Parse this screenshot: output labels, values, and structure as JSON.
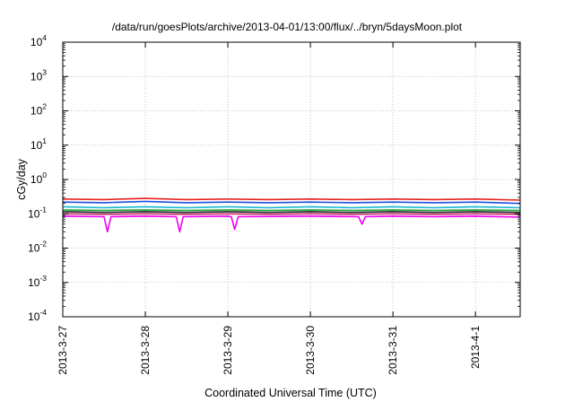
{
  "chart_data": {
    "type": "line",
    "title": "/data/run/goesPlots/archive/2013-04-01/13:00/flux/../bryn/5daysMoon.plot",
    "xlabel": "Coordinated Universal Time (UTC)",
    "ylabel": "cGy/day",
    "y_scale": "log",
    "ylim": [
      0.0001,
      10000
    ],
    "xlim": [
      "2013-03-27 00:00",
      "2013-04-01 13:00"
    ],
    "grid": true,
    "x_ticks": [
      {
        "value": "2013-03-27",
        "label": "2013-3-27"
      },
      {
        "value": "2013-03-28",
        "label": "2013-3-28"
      },
      {
        "value": "2013-03-29",
        "label": "2013-3-29"
      },
      {
        "value": "2013-03-30",
        "label": "2013-3-30"
      },
      {
        "value": "2013-03-31",
        "label": "2013-3-31"
      },
      {
        "value": "2013-04-01",
        "label": "2013-4-1"
      }
    ],
    "y_ticks": [
      {
        "value": 0.0001,
        "base": "10",
        "exp": "-4"
      },
      {
        "value": 0.001,
        "base": "10",
        "exp": "-3"
      },
      {
        "value": 0.01,
        "base": "10",
        "exp": "-2"
      },
      {
        "value": 0.1,
        "base": "10",
        "exp": "-1"
      },
      {
        "value": 1,
        "base": "10",
        "exp": "0"
      },
      {
        "value": 10,
        "base": "10",
        "exp": "1"
      },
      {
        "value": 100,
        "base": "10",
        "exp": "2"
      },
      {
        "value": 1000,
        "base": "10",
        "exp": "3"
      },
      {
        "value": 10000,
        "base": "10",
        "exp": "4"
      }
    ],
    "series": [
      {
        "color": "#e8201c",
        "x": [
          "2013-03-27 00:00",
          "2013-03-27 12:00",
          "2013-03-28 00:00",
          "2013-03-28 12:00",
          "2013-03-29 00:00",
          "2013-03-29 12:00",
          "2013-03-30 00:00",
          "2013-03-30 12:00",
          "2013-03-31 00:00",
          "2013-03-31 12:00",
          "2013-04-01 00:00",
          "2013-04-01 13:00"
        ],
        "values": [
          0.27,
          0.26,
          0.28,
          0.26,
          0.27,
          0.26,
          0.27,
          0.26,
          0.27,
          0.26,
          0.27,
          0.25
        ]
      },
      {
        "color": "#1f4fe0",
        "x": [
          "2013-03-27 00:00",
          "2013-03-27 12:00",
          "2013-03-28 00:00",
          "2013-03-28 12:00",
          "2013-03-29 00:00",
          "2013-03-29 12:00",
          "2013-03-30 00:00",
          "2013-03-30 12:00",
          "2013-03-31 00:00",
          "2013-03-31 12:00",
          "2013-04-01 00:00",
          "2013-04-01 13:00"
        ],
        "values": [
          0.22,
          0.21,
          0.23,
          0.21,
          0.22,
          0.21,
          0.22,
          0.21,
          0.22,
          0.21,
          0.22,
          0.2
        ]
      },
      {
        "color": "#19b5d0",
        "x": [
          "2013-03-27 00:00",
          "2013-03-27 12:00",
          "2013-03-28 00:00",
          "2013-03-28 12:00",
          "2013-03-29 00:00",
          "2013-03-29 12:00",
          "2013-03-30 00:00",
          "2013-03-30 12:00",
          "2013-03-31 00:00",
          "2013-03-31 12:00",
          "2013-04-01 00:00",
          "2013-04-01 13:00"
        ],
        "values": [
          0.16,
          0.15,
          0.16,
          0.15,
          0.16,
          0.15,
          0.16,
          0.15,
          0.16,
          0.15,
          0.16,
          0.15
        ]
      },
      {
        "color": "#22a83a",
        "x": [
          "2013-03-27 00:00",
          "2013-03-27 12:00",
          "2013-03-28 00:00",
          "2013-03-28 12:00",
          "2013-03-29 00:00",
          "2013-03-29 12:00",
          "2013-03-30 00:00",
          "2013-03-30 12:00",
          "2013-03-31 00:00",
          "2013-03-31 12:00",
          "2013-04-01 00:00",
          "2013-04-01 13:00"
        ],
        "values": [
          0.13,
          0.125,
          0.13,
          0.125,
          0.13,
          0.125,
          0.13,
          0.125,
          0.13,
          0.125,
          0.13,
          0.125
        ]
      },
      {
        "color": "#222222",
        "x": [
          "2013-03-27 00:00",
          "2013-03-27 12:00",
          "2013-03-28 00:00",
          "2013-03-28 12:00",
          "2013-03-29 00:00",
          "2013-03-29 12:00",
          "2013-03-30 00:00",
          "2013-03-30 12:00",
          "2013-03-31 00:00",
          "2013-03-31 12:00",
          "2013-04-01 00:00",
          "2013-04-01 13:00"
        ],
        "values": [
          0.115,
          0.11,
          0.115,
          0.11,
          0.115,
          0.11,
          0.115,
          0.11,
          0.115,
          0.11,
          0.115,
          0.11
        ]
      },
      {
        "color": "#c8286e",
        "x": [
          "2013-03-27 00:00",
          "2013-03-27 12:00",
          "2013-03-28 00:00",
          "2013-03-28 12:00",
          "2013-03-29 00:00",
          "2013-03-29 12:00",
          "2013-03-30 00:00",
          "2013-03-30 12:00",
          "2013-03-31 00:00",
          "2013-03-31 12:00",
          "2013-04-01 00:00",
          "2013-04-01 13:00"
        ],
        "values": [
          0.1,
          0.097,
          0.1,
          0.097,
          0.1,
          0.097,
          0.1,
          0.097,
          0.1,
          0.097,
          0.1,
          0.097
        ]
      },
      {
        "color": "#f000f0",
        "x": [
          "2013-03-27 00:00",
          "2013-03-27 12:00",
          "2013-03-27 13:00",
          "2013-03-27 14:00",
          "2013-03-28 00:00",
          "2013-03-28 09:00",
          "2013-03-28 10:00",
          "2013-03-28 11:00",
          "2013-03-29 00:00",
          "2013-03-29 01:00",
          "2013-03-29 02:00",
          "2013-03-29 03:00",
          "2013-03-30 00:00",
          "2013-03-30 14:00",
          "2013-03-30 15:00",
          "2013-03-30 16:00",
          "2013-03-31 00:00",
          "2013-03-31 12:00",
          "2013-04-01 00:00",
          "2013-04-01 13:00"
        ],
        "values": [
          0.085,
          0.082,
          0.03,
          0.082,
          0.085,
          0.082,
          0.03,
          0.082,
          0.085,
          0.082,
          0.035,
          0.082,
          0.085,
          0.082,
          0.05,
          0.082,
          0.085,
          0.082,
          0.085,
          0.08
        ]
      }
    ]
  }
}
